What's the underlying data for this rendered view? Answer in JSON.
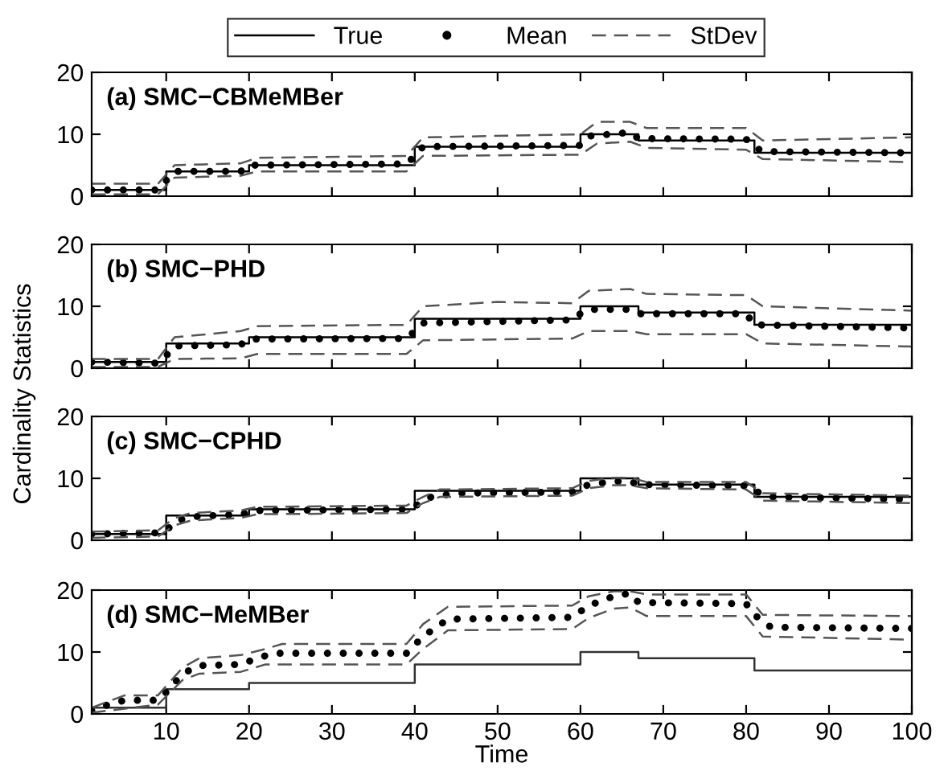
{
  "chart_data": [
    {
      "type": "line",
      "title": "(a) SMC−CBMeMBer",
      "xlim": [
        1,
        100
      ],
      "xticks": [
        10,
        20,
        30,
        40,
        50,
        60,
        70,
        80,
        90,
        100
      ],
      "ylim": [
        0,
        20
      ],
      "yticks": [
        0,
        10,
        20
      ],
      "tick_labels": "y",
      "legend": "top",
      "grid": false,
      "series": [
        {
          "name": "True",
          "type": "step",
          "color": "#000000",
          "line_style": "solid",
          "x": [
            1,
            10,
            20,
            40,
            60,
            67,
            81,
            100
          ],
          "values": [
            1,
            4,
            5,
            8,
            10,
            9,
            7,
            7
          ]
        },
        {
          "name": "Mean",
          "color": "#000000",
          "line_style": "dotted",
          "x": [
            1,
            9,
            10,
            11,
            19,
            20,
            39,
            40,
            41,
            60,
            61,
            66,
            67,
            80,
            81,
            82,
            100
          ],
          "values": [
            1,
            1,
            2.5,
            4,
            4,
            5,
            5.2,
            6.5,
            8,
            8.2,
            9.7,
            10.3,
            9.3,
            9.2,
            8,
            7.2,
            7
          ]
        },
        {
          "name": "StDev",
          "color": "#555555",
          "line_style": "dashed",
          "x": [
            1,
            9,
            11,
            19,
            21,
            39,
            41,
            60,
            62,
            66,
            68,
            80,
            82,
            100
          ],
          "values": [
            2,
            2,
            5,
            5.3,
            6.2,
            6.5,
            9.5,
            10,
            12,
            12,
            11,
            11,
            9,
            9.5
          ]
        },
        {
          "color": "#555555",
          "line_style": "dashed",
          "x": [
            1,
            9,
            11,
            19,
            21,
            39,
            41,
            60,
            62,
            66,
            68,
            80,
            82,
            100
          ],
          "values": [
            0.3,
            0.3,
            3,
            3.3,
            4,
            4,
            6.5,
            6.7,
            8.5,
            8.8,
            7.8,
            7.5,
            6,
            5.5
          ]
        }
      ]
    },
    {
      "type": "line",
      "title": "(b) SMC−PHD",
      "ylabel": "Cardinality Statistics",
      "xlim": [
        1,
        100
      ],
      "xticks": [
        10,
        20,
        30,
        40,
        50,
        60,
        70,
        80,
        90,
        100
      ],
      "ylim": [
        0,
        20
      ],
      "yticks": [
        0,
        10,
        20
      ],
      "tick_labels": "y",
      "grid": false,
      "series": [
        {
          "type": "step",
          "color": "#000000",
          "line_style": "solid",
          "x": [
            1,
            10,
            20,
            40,
            60,
            67,
            81,
            100
          ],
          "values": [
            1,
            4,
            5,
            8,
            10,
            9,
            7,
            7
          ]
        },
        {
          "color": "#000000",
          "line_style": "dotted",
          "x": [
            1,
            9,
            10,
            11,
            19,
            20,
            39,
            40,
            41,
            59,
            60,
            61,
            66,
            67,
            80,
            81,
            100
          ],
          "values": [
            1,
            0.8,
            2,
            3.6,
            3.8,
            4.7,
            4.8,
            6,
            7.3,
            7.8,
            8.8,
            9.5,
            9.5,
            8.8,
            8.8,
            7,
            6.5
          ]
        },
        {
          "color": "#555555",
          "line_style": "dashed",
          "x": [
            1,
            9,
            11,
            19,
            21,
            39,
            41,
            50,
            59,
            61,
            66,
            68,
            80,
            82,
            100
          ],
          "values": [
            1.5,
            1.5,
            5,
            6,
            6.8,
            7,
            10,
            10.7,
            10.5,
            12.5,
            12.8,
            12,
            11.8,
            10,
            9.3
          ]
        },
        {
          "color": "#555555",
          "line_style": "dashed",
          "x": [
            1,
            9,
            11,
            19,
            21,
            39,
            41,
            59,
            61,
            66,
            68,
            80,
            82,
            100
          ],
          "values": [
            0.2,
            0.2,
            1.5,
            1.6,
            2.3,
            2.3,
            4.5,
            4.8,
            6,
            6,
            5.5,
            5.5,
            4,
            3.5
          ]
        }
      ]
    },
    {
      "type": "line",
      "title": "(c) SMC−CPHD",
      "xlim": [
        1,
        100
      ],
      "xticks": [
        10,
        20,
        30,
        40,
        50,
        60,
        70,
        80,
        90,
        100
      ],
      "ylim": [
        0,
        20
      ],
      "yticks": [
        0,
        10,
        20
      ],
      "tick_labels": "y",
      "grid": false,
      "series": [
        {
          "type": "step",
          "color": "#000000",
          "line_style": "solid",
          "x": [
            1,
            10,
            20,
            40,
            60,
            67,
            81,
            100
          ],
          "values": [
            1,
            4,
            5,
            8,
            10,
            9,
            7,
            7
          ]
        },
        {
          "color": "#000000",
          "line_style": "dotted",
          "x": [
            1,
            9,
            10,
            11,
            13,
            19,
            21,
            39,
            40,
            42,
            45,
            59,
            61,
            64,
            66,
            67,
            80,
            81,
            83,
            100
          ],
          "values": [
            1,
            1.2,
            1.5,
            3,
            3.8,
            4.2,
            4.8,
            5,
            5.5,
            7,
            7.6,
            7.8,
            9,
            9.5,
            9.5,
            9,
            8.8,
            8,
            7,
            6.6
          ]
        },
        {
          "color": "#555555",
          "line_style": "dashed",
          "x": [
            1,
            9,
            11,
            13,
            19,
            21,
            39,
            41,
            43,
            59,
            61,
            64,
            66,
            68,
            80,
            82,
            100
          ],
          "values": [
            1.4,
            1.6,
            3.6,
            4.4,
            4.8,
            5.4,
            5.6,
            7,
            8.2,
            8.4,
            9.6,
            10.1,
            10.1,
            9.4,
            9.4,
            7.6,
            7.2
          ]
        },
        {
          "color": "#555555",
          "line_style": "dashed",
          "x": [
            1,
            9,
            11,
            13,
            19,
            21,
            39,
            41,
            43,
            59,
            61,
            64,
            66,
            68,
            80,
            82,
            100
          ],
          "values": [
            0.4,
            0.6,
            2.4,
            3.2,
            3.6,
            4.2,
            4.4,
            6,
            7,
            7.2,
            8.4,
            8.9,
            8.9,
            8.4,
            8.2,
            6.4,
            6
          ]
        }
      ]
    },
    {
      "type": "line",
      "title": "(d) SMC−MeMBer",
      "xlabel": "Time",
      "xlim": [
        1,
        100
      ],
      "xticks": [
        10,
        20,
        30,
        40,
        50,
        60,
        70,
        80,
        90,
        100
      ],
      "ylim": [
        0,
        20
      ],
      "yticks": [
        0,
        10,
        20
      ],
      "grid": false,
      "series": [
        {
          "type": "step",
          "color": "#333333",
          "line_style": "solid",
          "x": [
            1,
            10,
            20,
            40,
            60,
            67,
            81,
            100
          ],
          "values": [
            1,
            4,
            5,
            8,
            10,
            9,
            7,
            7
          ]
        },
        {
          "color": "#000000",
          "line_style": "dotted",
          "x": [
            1,
            3,
            5,
            9,
            10,
            12,
            14,
            19,
            21,
            23,
            39,
            41,
            44,
            59,
            61,
            64,
            66,
            67,
            80,
            81,
            83,
            100
          ],
          "values": [
            0.5,
            1.5,
            2.2,
            2.2,
            3.5,
            6.5,
            7.8,
            8,
            9,
            9.8,
            9.8,
            12.5,
            15.3,
            15.6,
            17.5,
            19,
            19.5,
            18,
            17.8,
            16,
            14,
            13.8
          ]
        },
        {
          "color": "#555555",
          "line_style": "dashed",
          "x": [
            1,
            5,
            9,
            12,
            14,
            19,
            22,
            24,
            39,
            41,
            44,
            59,
            61,
            64,
            66,
            68,
            80,
            82,
            100
          ],
          "values": [
            1,
            3,
            3,
            7.5,
            9,
            9.5,
            10.5,
            11.3,
            11.3,
            14.5,
            17.3,
            17.5,
            19,
            19.8,
            19.8,
            19.3,
            19.3,
            16,
            15.8
          ]
        },
        {
          "color": "#555555",
          "line_style": "dashed",
          "x": [
            1,
            9,
            12,
            14,
            19,
            22,
            39,
            41,
            44,
            59,
            61,
            64,
            66,
            68,
            80,
            82,
            100
          ],
          "values": [
            0.2,
            1.5,
            5.5,
            6.5,
            6.8,
            8,
            8,
            10.5,
            13.5,
            13.7,
            15.5,
            17,
            17.2,
            15.8,
            15.8,
            12.5,
            12
          ]
        }
      ]
    }
  ]
}
